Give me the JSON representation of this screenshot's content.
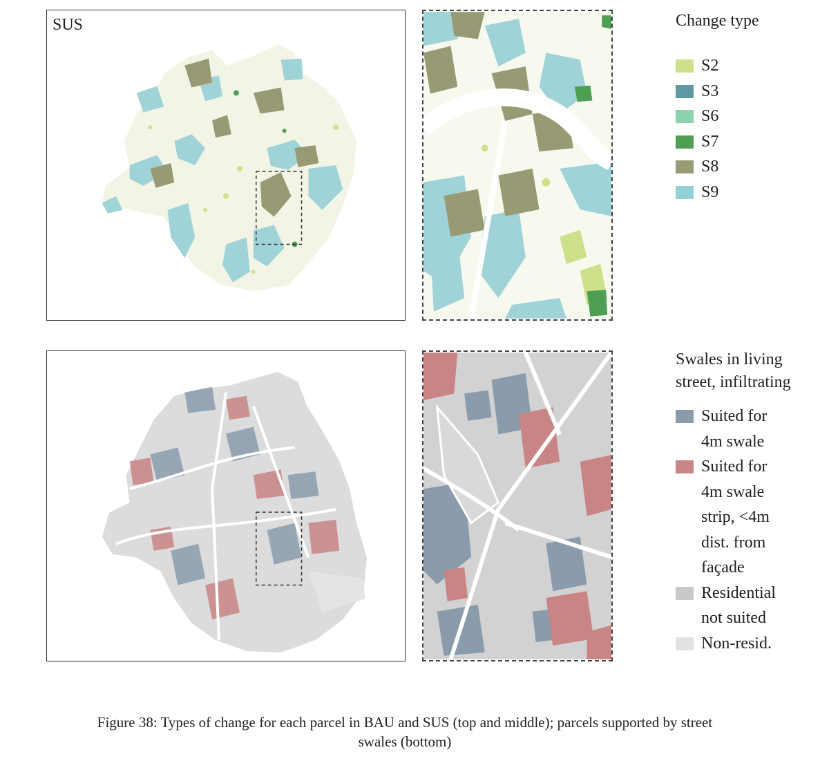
{
  "top_overview": {
    "label": "SUS"
  },
  "change_legend": {
    "title": "Change type",
    "items": [
      {
        "label": "S2",
        "color": "#cde08a"
      },
      {
        "label": "S3",
        "color": "#5f97a3"
      },
      {
        "label": "S6",
        "color": "#8fd2b0"
      },
      {
        "label": "S7",
        "color": "#4e9e54"
      },
      {
        "label": "S8",
        "color": "#979a73"
      },
      {
        "label": "S9",
        "color": "#93d1d6"
      }
    ]
  },
  "swale_legend": {
    "title_lines": [
      "Swales in living",
      "street, infiltrating"
    ],
    "items": [
      {
        "color": "#8a9cac",
        "lines": [
          "Suited for",
          "4m swale"
        ]
      },
      {
        "color": "#c98585",
        "lines": [
          "Suited for",
          "4m swale",
          "strip, <4m",
          "dist. from",
          "façade"
        ]
      },
      {
        "color": "#c9c9c9",
        "lines": [
          "Residential",
          "not suited"
        ]
      },
      {
        "color": "#e2e2e2",
        "lines": [
          "Non-resid."
        ]
      }
    ]
  },
  "caption": {
    "line1": "Figure 38: Types of change for each parcel in BAU and SUS (top and middle); parcels supported by street",
    "line2": "swales (bottom)"
  }
}
